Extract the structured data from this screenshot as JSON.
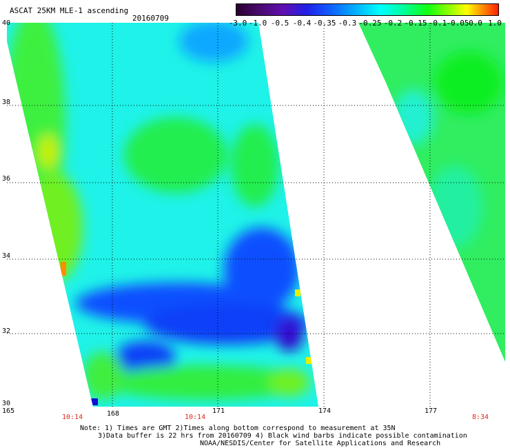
{
  "header": {
    "title": "ASCAT 25KM MLE-1 ascending",
    "date": "20160709"
  },
  "colorbar": {
    "ticks": [
      "-3.0",
      "-1.0",
      "-0.5",
      "-0.4",
      "-0.35",
      "-0.3",
      "-0.25",
      "-0.2",
      "-0.15",
      "-0.1",
      "-0.05",
      "0.0",
      "1.0"
    ]
  },
  "axes": {
    "lat_labels": [
      "40",
      "38",
      "36",
      "34",
      "32",
      "30"
    ],
    "lon_labels": [
      "165",
      "168",
      "171",
      "174",
      "177"
    ],
    "times": [
      "10:14",
      "10:14",
      "8:34"
    ]
  },
  "notes": {
    "line1": "Note: 1) Times are GMT 2)Times along bottom correspond to measurement at 35N",
    "line2": "3)Data buffer is 22 hrs from 20160709 4) Black wind barbs indicate possible contamination",
    "line3": "NOAA/NESDIS/Center for Satellite Applications and Research"
  },
  "colors": {
    "cyan": "#00ffff",
    "green": "#10ff10",
    "blue": "#1040ff",
    "deep_blue": "#2010e0",
    "purple": "#6010b0",
    "red_time": "#e0241b"
  }
}
